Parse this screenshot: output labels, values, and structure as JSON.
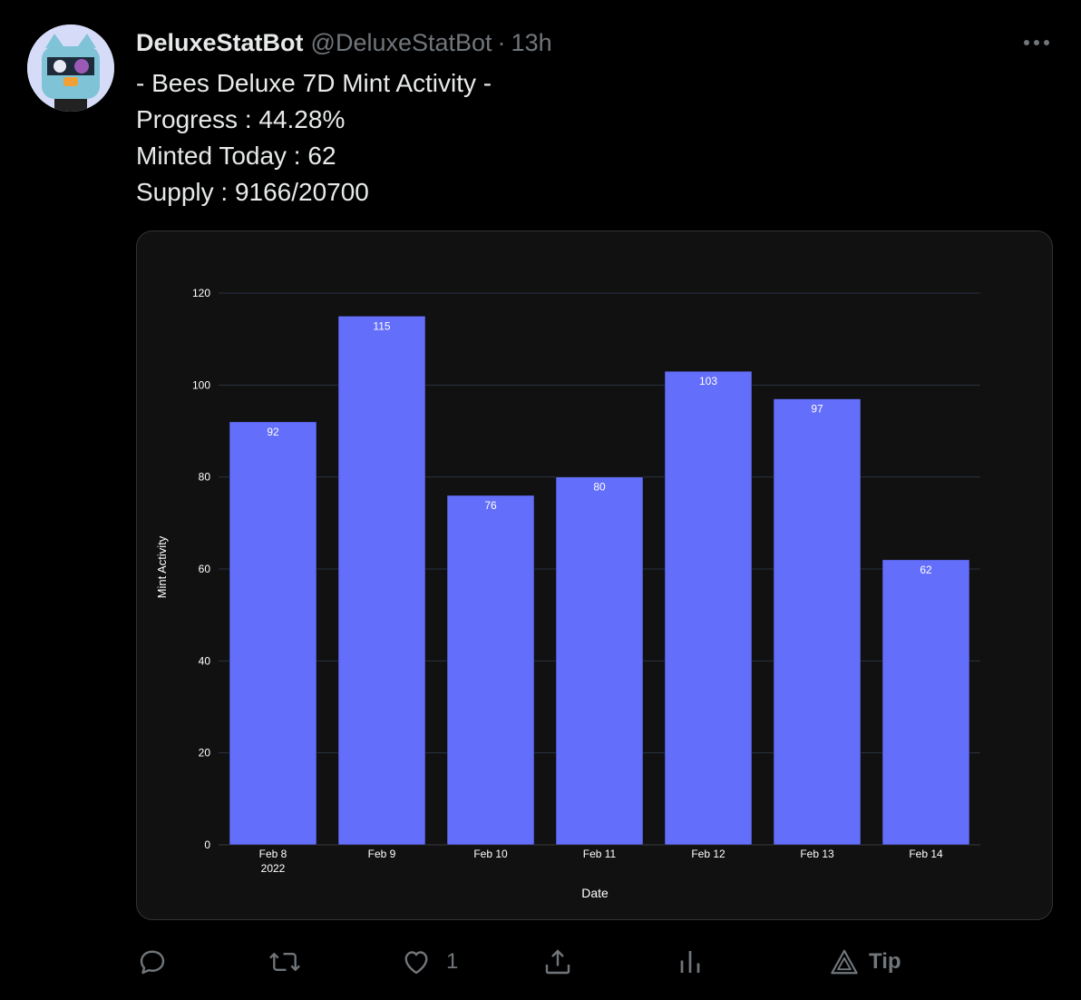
{
  "tweet": {
    "display_name": "DeluxeStatBot",
    "handle": "@DeluxeStatBot",
    "separator": "·",
    "time": "13h",
    "lines": [
      "- Bees Deluxe 7D Mint Activity -",
      "Progress : 44.28%",
      "Minted Today : 62",
      "Supply : 9166/20700"
    ]
  },
  "actions": {
    "reply_count": "",
    "retweet_count": "",
    "like_count": "1",
    "tip_label": "Tip"
  },
  "icons": [
    "more-icon",
    "reply-icon",
    "retweet-icon",
    "like-icon",
    "share-icon",
    "analytics-icon",
    "tip-icon"
  ],
  "colors": {
    "background": "#000000",
    "card": "#111111",
    "bar": "#636efa",
    "text": "#e7e9ea",
    "muted": "#71767b"
  },
  "chart_data": {
    "type": "bar",
    "categories": [
      "Feb 8",
      "Feb 9",
      "Feb 10",
      "Feb 11",
      "Feb 12",
      "Feb 13",
      "Feb 14"
    ],
    "first_tick_sublabel": "2022",
    "values": [
      92,
      115,
      76,
      80,
      103,
      97,
      62
    ],
    "data_labels": [
      "92",
      "115",
      "76",
      "80",
      "103",
      "97",
      "62"
    ],
    "xlabel": "Date",
    "ylabel": "Mint Activity",
    "ylim": [
      0,
      120
    ],
    "yticks": [
      0,
      20,
      40,
      60,
      80,
      100,
      120
    ],
    "grid": true,
    "bar_color": "#636efa"
  }
}
